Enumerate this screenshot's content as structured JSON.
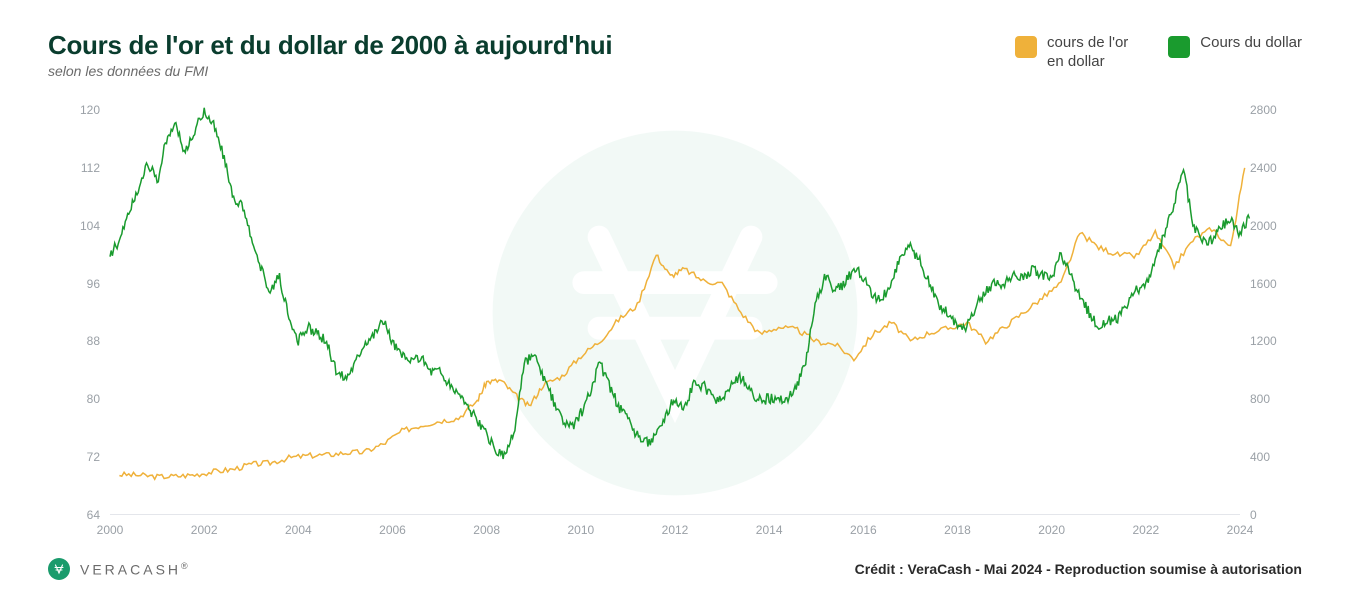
{
  "title": "Cours de l'or et du dollar de 2000 à aujourd'hui",
  "subtitle": "selon les données du FMI",
  "legend": [
    {
      "label": "cours de l'or\nen dollar",
      "color": "#efb13a"
    },
    {
      "label": "Cours du dollar",
      "color": "#1a9b2e"
    }
  ],
  "brand": {
    "name": "VERACASH",
    "registered": "®"
  },
  "credit": "Crédit : VeraCash - Mai 2024 - Reproduction soumise à autorisation",
  "colors": {
    "title": "#0a3d2e",
    "subtitle": "#6b6b6b",
    "axis_label": "#9aa0a6",
    "baseline": "#e4e6eb",
    "background": "#ffffff",
    "watermark": "#1a9b6c"
  },
  "chart": {
    "type": "line-dual-axis",
    "x": {
      "min": 2000,
      "max": 2024,
      "ticks": [
        2000,
        2002,
        2004,
        2006,
        2008,
        2010,
        2012,
        2014,
        2016,
        2018,
        2020,
        2022,
        2024
      ],
      "fontsize": 12
    },
    "y_left": {
      "min": 64,
      "max": 120,
      "ticks": [
        64,
        72,
        80,
        88,
        96,
        104,
        112,
        120
      ],
      "color": "#1a9b2e",
      "fontsize": 12
    },
    "y_right": {
      "min": 0,
      "max": 2800,
      "ticks": [
        0,
        400,
        800,
        1200,
        1600,
        2000,
        2400,
        2800
      ],
      "color": "#efb13a",
      "fontsize": 12
    },
    "line_width": 1.5,
    "series": [
      {
        "name": "gold_usd",
        "axis": "right",
        "color": "#efb13a",
        "points": [
          [
            2000.2,
            280
          ],
          [
            2000.6,
            275
          ],
          [
            2001.0,
            265
          ],
          [
            2001.4,
            268
          ],
          [
            2001.8,
            278
          ],
          [
            2002.2,
            300
          ],
          [
            2002.6,
            315
          ],
          [
            2003.0,
            350
          ],
          [
            2003.4,
            360
          ],
          [
            2003.8,
            395
          ],
          [
            2004.2,
            410
          ],
          [
            2004.6,
            415
          ],
          [
            2005.0,
            430
          ],
          [
            2005.4,
            435
          ],
          [
            2005.8,
            490
          ],
          [
            2006.2,
            580
          ],
          [
            2006.6,
            620
          ],
          [
            2007.0,
            650
          ],
          [
            2007.4,
            670
          ],
          [
            2007.8,
            790
          ],
          [
            2008.0,
            920
          ],
          [
            2008.3,
            930
          ],
          [
            2008.6,
            830
          ],
          [
            2008.9,
            750
          ],
          [
            2009.2,
            900
          ],
          [
            2009.6,
            960
          ],
          [
            2010.0,
            1100
          ],
          [
            2010.4,
            1200
          ],
          [
            2010.8,
            1350
          ],
          [
            2011.2,
            1450
          ],
          [
            2011.6,
            1800
          ],
          [
            2011.9,
            1650
          ],
          [
            2012.2,
            1700
          ],
          [
            2012.6,
            1620
          ],
          [
            2013.0,
            1600
          ],
          [
            2013.4,
            1400
          ],
          [
            2013.8,
            1250
          ],
          [
            2014.2,
            1300
          ],
          [
            2014.6,
            1280
          ],
          [
            2015.0,
            1200
          ],
          [
            2015.4,
            1180
          ],
          [
            2015.8,
            1080
          ],
          [
            2016.2,
            1250
          ],
          [
            2016.6,
            1330
          ],
          [
            2017.0,
            1200
          ],
          [
            2017.4,
            1260
          ],
          [
            2017.8,
            1290
          ],
          [
            2018.2,
            1330
          ],
          [
            2018.6,
            1200
          ],
          [
            2019.0,
            1300
          ],
          [
            2019.4,
            1400
          ],
          [
            2019.8,
            1500
          ],
          [
            2020.2,
            1600
          ],
          [
            2020.6,
            1950
          ],
          [
            2021.0,
            1850
          ],
          [
            2021.4,
            1800
          ],
          [
            2021.8,
            1790
          ],
          [
            2022.2,
            1950
          ],
          [
            2022.6,
            1720
          ],
          [
            2023.0,
            1900
          ],
          [
            2023.4,
            1980
          ],
          [
            2023.8,
            1850
          ],
          [
            2024.1,
            2400
          ]
        ]
      },
      {
        "name": "dollar_index",
        "axis": "left",
        "color": "#1a9b2e",
        "points": [
          [
            2000.0,
            100
          ],
          [
            2000.2,
            102
          ],
          [
            2000.4,
            106
          ],
          [
            2000.6,
            109
          ],
          [
            2000.8,
            113
          ],
          [
            2001.0,
            110
          ],
          [
            2001.2,
            116
          ],
          [
            2001.4,
            118
          ],
          [
            2001.6,
            114
          ],
          [
            2001.8,
            117
          ],
          [
            2002.0,
            120
          ],
          [
            2002.2,
            118
          ],
          [
            2002.4,
            114
          ],
          [
            2002.6,
            108
          ],
          [
            2002.8,
            107
          ],
          [
            2003.0,
            102
          ],
          [
            2003.2,
            98
          ],
          [
            2003.4,
            95
          ],
          [
            2003.6,
            97
          ],
          [
            2003.8,
            91
          ],
          [
            2004.0,
            88
          ],
          [
            2004.2,
            90
          ],
          [
            2004.4,
            89
          ],
          [
            2004.6,
            88
          ],
          [
            2004.8,
            84
          ],
          [
            2005.0,
            83
          ],
          [
            2005.2,
            85
          ],
          [
            2005.4,
            88
          ],
          [
            2005.6,
            89
          ],
          [
            2005.8,
            91
          ],
          [
            2006.0,
            88
          ],
          [
            2006.2,
            86
          ],
          [
            2006.4,
            85
          ],
          [
            2006.6,
            86
          ],
          [
            2006.8,
            84
          ],
          [
            2007.0,
            84
          ],
          [
            2007.2,
            82
          ],
          [
            2007.4,
            81
          ],
          [
            2007.6,
            79
          ],
          [
            2007.8,
            77
          ],
          [
            2008.0,
            75
          ],
          [
            2008.2,
            73
          ],
          [
            2008.4,
            72
          ],
          [
            2008.6,
            76
          ],
          [
            2008.8,
            85
          ],
          [
            2009.0,
            86
          ],
          [
            2009.2,
            83
          ],
          [
            2009.4,
            80
          ],
          [
            2009.6,
            77
          ],
          [
            2009.8,
            76
          ],
          [
            2010.0,
            78
          ],
          [
            2010.2,
            81
          ],
          [
            2010.4,
            85
          ],
          [
            2010.6,
            82
          ],
          [
            2010.8,
            79
          ],
          [
            2011.0,
            77
          ],
          [
            2011.2,
            75
          ],
          [
            2011.4,
            74
          ],
          [
            2011.6,
            75
          ],
          [
            2011.8,
            78
          ],
          [
            2012.0,
            80
          ],
          [
            2012.2,
            79
          ],
          [
            2012.4,
            82
          ],
          [
            2012.6,
            82
          ],
          [
            2012.8,
            80
          ],
          [
            2013.0,
            80
          ],
          [
            2013.2,
            82
          ],
          [
            2013.4,
            83
          ],
          [
            2013.6,
            81
          ],
          [
            2013.8,
            80
          ],
          [
            2014.0,
            80
          ],
          [
            2014.2,
            80
          ],
          [
            2014.4,
            80
          ],
          [
            2014.6,
            82
          ],
          [
            2014.8,
            86
          ],
          [
            2015.0,
            94
          ],
          [
            2015.2,
            97
          ],
          [
            2015.4,
            95
          ],
          [
            2015.6,
            96
          ],
          [
            2015.8,
            98
          ],
          [
            2016.0,
            97
          ],
          [
            2016.2,
            94
          ],
          [
            2016.4,
            94
          ],
          [
            2016.6,
            96
          ],
          [
            2016.8,
            100
          ],
          [
            2017.0,
            101
          ],
          [
            2017.2,
            99
          ],
          [
            2017.4,
            96
          ],
          [
            2017.6,
            93
          ],
          [
            2017.8,
            92
          ],
          [
            2018.0,
            90
          ],
          [
            2018.2,
            90
          ],
          [
            2018.4,
            93
          ],
          [
            2018.6,
            95
          ],
          [
            2018.8,
            96
          ],
          [
            2019.0,
            96
          ],
          [
            2019.2,
            97
          ],
          [
            2019.4,
            97
          ],
          [
            2019.6,
            98
          ],
          [
            2019.8,
            97
          ],
          [
            2020.0,
            97
          ],
          [
            2020.2,
            100
          ],
          [
            2020.4,
            97
          ],
          [
            2020.6,
            94
          ],
          [
            2020.8,
            92
          ],
          [
            2021.0,
            90
          ],
          [
            2021.2,
            91
          ],
          [
            2021.4,
            91
          ],
          [
            2021.6,
            93
          ],
          [
            2021.8,
            95
          ],
          [
            2022.0,
            96
          ],
          [
            2022.2,
            99
          ],
          [
            2022.4,
            103
          ],
          [
            2022.6,
            107
          ],
          [
            2022.8,
            112
          ],
          [
            2023.0,
            104
          ],
          [
            2023.2,
            102
          ],
          [
            2023.4,
            102
          ],
          [
            2023.6,
            104
          ],
          [
            2023.8,
            105
          ],
          [
            2024.0,
            103
          ],
          [
            2024.2,
            105
          ]
        ]
      }
    ]
  }
}
